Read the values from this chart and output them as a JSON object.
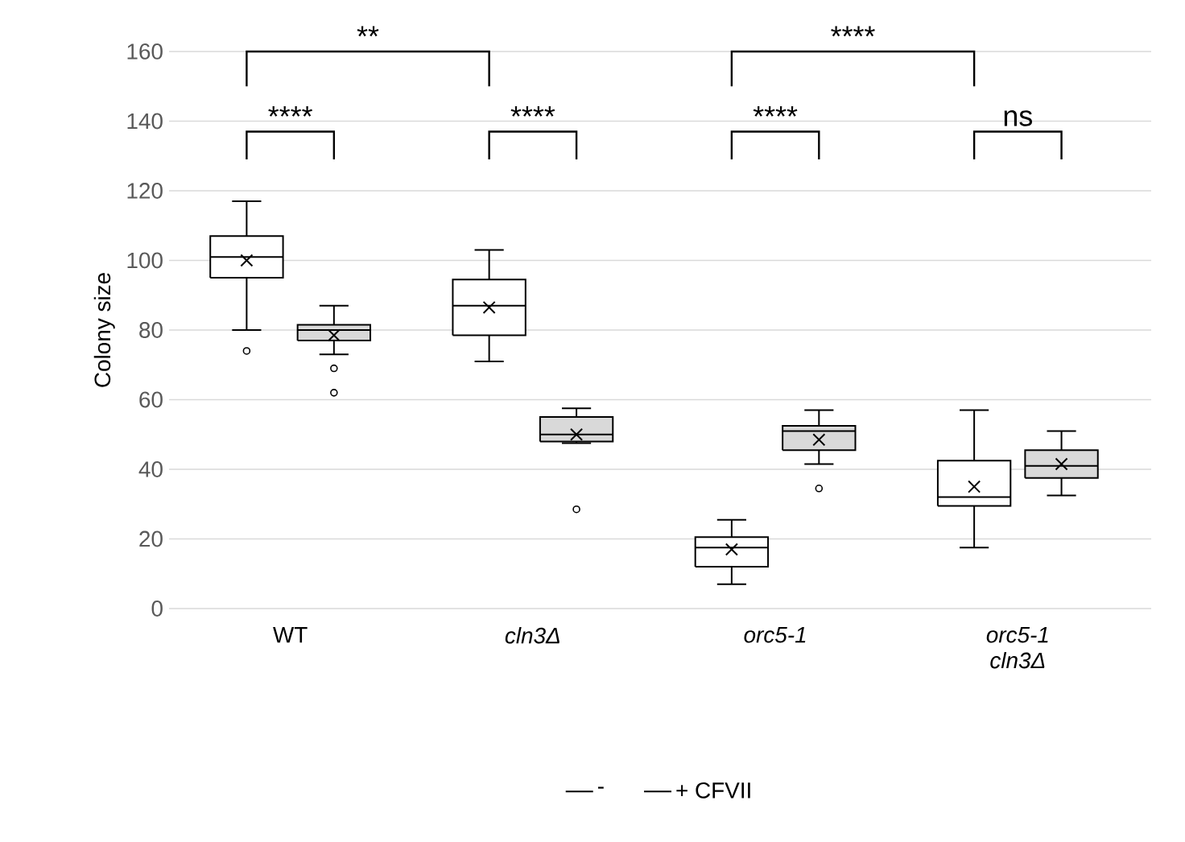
{
  "chart_data": {
    "type": "box",
    "ylabel": "Colony size",
    "categories": [
      "WT",
      "*cln3Δ*",
      "*orc5-1*",
      "*orc5-1 cln3Δ*"
    ],
    "series": [
      {
        "name": "-",
        "color": "#ffffff",
        "boxes": [
          {
            "low": 80,
            "q1": 95,
            "median": 101,
            "q3": 107,
            "high": 117,
            "mean": 100,
            "outliers": [
              74
            ]
          },
          {
            "low": 71,
            "q1": 78.5,
            "median": 87,
            "q3": 94.5,
            "high": 103,
            "mean": 86.5
          },
          {
            "low": 7,
            "q1": 12,
            "median": 17.5,
            "q3": 20.5,
            "high": 25.5,
            "mean": 17
          },
          {
            "low": 17.5,
            "q1": 29.5,
            "median": 32,
            "q3": 42.5,
            "high": 57,
            "mean": 35
          }
        ]
      },
      {
        "name": "+ CFVII",
        "color": "#d9d9d9",
        "boxes": [
          {
            "low": 73,
            "q1": 77,
            "median": 80,
            "q3": 81.5,
            "high": 87,
            "mean": 78.5,
            "outliers": [
              69,
              62
            ]
          },
          {
            "low": 47.5,
            "q1": 48,
            "median": 50,
            "q3": 55,
            "high": 57.5,
            "mean": 50,
            "outliers": [
              28.5
            ]
          },
          {
            "low": 41.5,
            "q1": 45.5,
            "median": 51,
            "q3": 52.5,
            "high": 57,
            "mean": 48.5,
            "outliers": [
              34.5
            ]
          },
          {
            "low": 32.5,
            "q1": 37.5,
            "median": 41,
            "q3": 45.5,
            "high": 51,
            "mean": 41.5
          }
        ]
      }
    ],
    "ylim": [
      0,
      160
    ],
    "yticks": [
      0,
      20,
      40,
      60,
      80,
      100,
      120,
      140,
      160
    ],
    "grid": "y",
    "legend": "bottom",
    "annotations": [
      "**",
      "****",
      "****",
      "****",
      "****",
      "ns"
    ]
  }
}
